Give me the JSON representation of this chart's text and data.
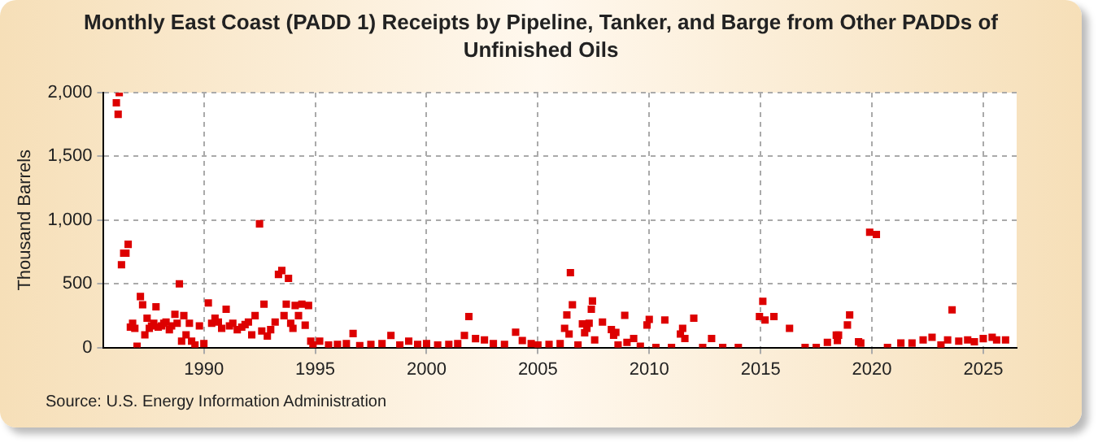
{
  "chart_data": {
    "type": "scatter",
    "title": "Monthly East Coast (PADD 1) Receipts by Pipeline, Tanker, and Barge from Other PADDs of Unfinished Oils",
    "ylabel": "Thousand Barrels",
    "annotations": [
      "Source: U.S. Energy Information Administration"
    ],
    "x": [
      1986.07,
      1986.15,
      1986.2,
      1986.3,
      1986.4,
      1986.5,
      1986.6,
      1986.7,
      1986.8,
      1986.9,
      1987.0,
      1987.15,
      1987.25,
      1987.35,
      1987.45,
      1987.55,
      1987.65,
      1987.75,
      1987.85,
      1987.95,
      1988.1,
      1988.2,
      1988.3,
      1988.45,
      1988.55,
      1988.7,
      1988.8,
      1988.9,
      1989.0,
      1989.1,
      1989.2,
      1989.35,
      1989.45,
      1989.6,
      1989.8,
      1990.0,
      1990.2,
      1990.35,
      1990.5,
      1990.65,
      1990.8,
      1991.0,
      1991.15,
      1991.3,
      1991.5,
      1991.7,
      1991.85,
      1992.0,
      1992.15,
      1992.3,
      1992.5,
      1992.6,
      1992.7,
      1992.85,
      1993.0,
      1993.2,
      1993.35,
      1993.5,
      1993.6,
      1993.7,
      1993.8,
      1993.9,
      1994.0,
      1994.1,
      1994.25,
      1994.4,
      1994.55,
      1994.7,
      1994.8,
      1994.9,
      1995.2,
      1995.6,
      1996.0,
      1996.4,
      1996.7,
      1997.0,
      1997.5,
      1998.0,
      1998.4,
      1998.8,
      1999.2,
      1999.6,
      2000.0,
      2000.5,
      2001.0,
      2001.4,
      2001.7,
      2001.9,
      2002.2,
      2002.6,
      2003.0,
      2003.5,
      2004.0,
      2004.3,
      2004.7,
      2005.0,
      2005.5,
      2006.0,
      2006.2,
      2006.3,
      2006.4,
      2006.46,
      2006.55,
      2006.8,
      2007.0,
      2007.1,
      2007.2,
      2007.3,
      2007.4,
      2007.45,
      2007.55,
      2007.9,
      2008.3,
      2008.4,
      2008.5,
      2008.6,
      2008.9,
      2009.0,
      2009.3,
      2009.6,
      2009.9,
      2010.0,
      2010.3,
      2010.7,
      2011.0,
      2011.4,
      2011.5,
      2011.6,
      2012.0,
      2012.4,
      2012.8,
      2013.3,
      2014.0,
      2014.95,
      2015.1,
      2015.2,
      2015.6,
      2016.3,
      2017.0,
      2017.5,
      2018.0,
      2018.4,
      2018.45,
      2018.5,
      2018.9,
      2019.0,
      2019.4,
      2019.5,
      2019.9,
      2020.2,
      2020.7,
      2021.3,
      2021.8,
      2022.3,
      2022.7,
      2023.1,
      2023.4,
      2023.6,
      2023.9,
      2024.3,
      2024.6,
      2025.0,
      2025.4,
      2025.6,
      2026.0
    ],
    "values": [
      1920,
      1830,
      2000,
      650,
      740,
      740,
      810,
      160,
      190,
      150,
      10,
      400,
      335,
      100,
      230,
      150,
      170,
      190,
      320,
      160,
      170,
      190,
      200,
      140,
      170,
      260,
      190,
      500,
      50,
      250,
      100,
      190,
      50,
      20,
      170,
      30,
      350,
      190,
      230,
      200,
      150,
      300,
      170,
      190,
      140,
      160,
      180,
      200,
      100,
      250,
      971,
      130,
      340,
      90,
      140,
      200,
      574,
      604,
      250,
      340,
      543,
      190,
      150,
      330,
      250,
      340,
      175,
      330,
      50,
      20,
      50,
      20,
      25,
      30,
      110,
      15,
      25,
      30,
      95,
      20,
      50,
      25,
      30,
      20,
      25,
      30,
      95,
      243,
      70,
      60,
      30,
      25,
      120,
      55,
      30,
      20,
      25,
      30,
      150,
      256,
      106,
      587,
      335,
      20,
      186,
      115,
      150,
      190,
      300,
      365,
      60,
      200,
      141,
      97,
      119,
      20,
      252,
      40,
      71,
      10,
      177,
      221,
      0,
      216,
      0,
      106,
      150,
      71,
      230,
      0,
      71,
      0,
      0,
      243,
      362,
      216,
      243,
      150,
      0,
      0,
      40,
      97,
      55,
      97,
      177,
      256,
      45,
      35,
      905,
      887,
      0,
      35,
      35,
      60,
      80,
      20,
      60,
      296,
      50,
      60,
      45,
      70,
      80,
      60,
      60
    ],
    "color": "#dd0000",
    "marker": "square",
    "grid": true,
    "xlim": [
      1985.5,
      2026.5
    ],
    "xticks": [
      1990,
      1995,
      2000,
      2005,
      2010,
      2015,
      2020,
      2025
    ],
    "ylim": [
      0,
      2000
    ],
    "yticks": [
      0,
      500,
      {
        "value": 1000,
        "label": "1,000"
      },
      {
        "value": 1500,
        "label": "1,500"
      },
      {
        "value": 2000,
        "label": "2,000"
      }
    ]
  }
}
